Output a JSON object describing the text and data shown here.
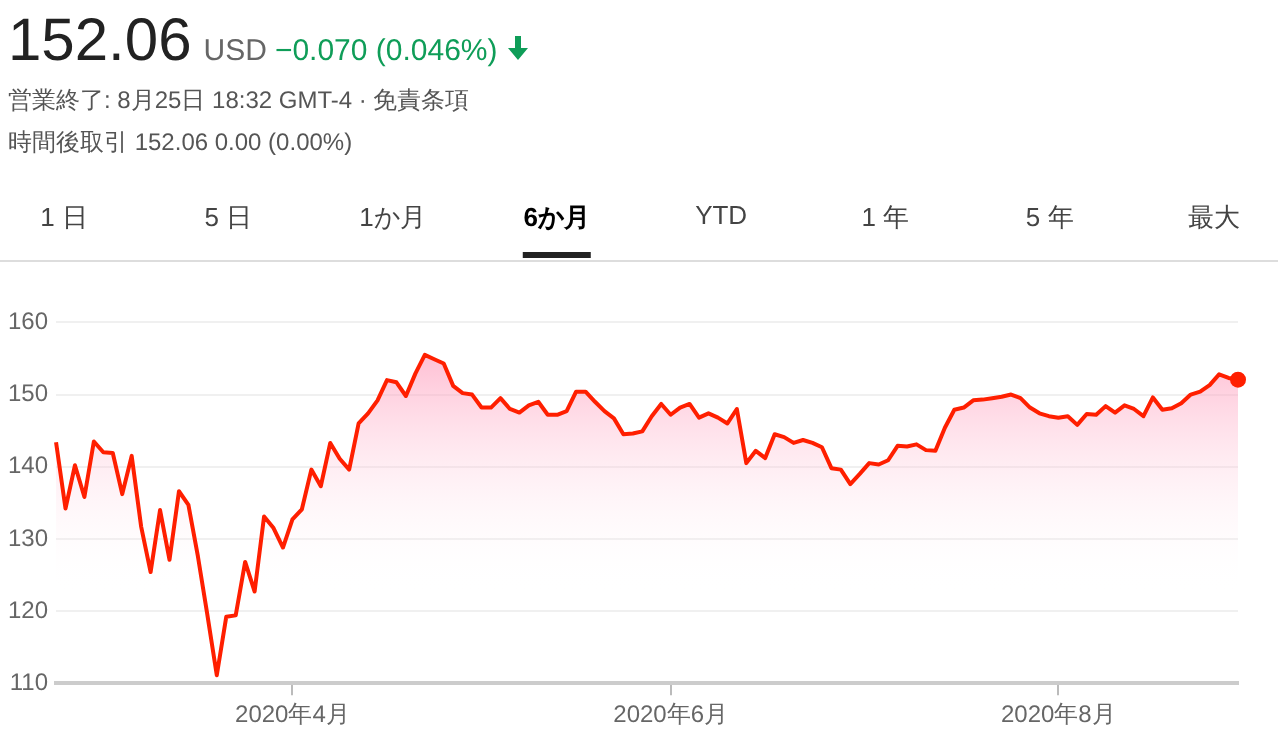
{
  "chart_data": {
    "type": "area",
    "title": "152.06",
    "annotations": [
      "USD",
      "−0.070 (0.046%)",
      "営業終了: 8月25日 18:32 GMT-4 · 免責条項",
      "時間後取引 152.06 0.00 (0.00%)",
      "1 日",
      "5 日",
      "1か月",
      "6か月",
      "YTD",
      "1 年",
      "5 年",
      "最大"
    ],
    "categories": [
      null,
      null,
      null,
      null,
      null,
      null,
      null,
      null,
      null,
      null,
      null,
      null,
      null,
      null,
      null,
      null,
      null,
      null,
      null,
      null,
      null,
      null,
      null,
      null,
      null,
      "2020年4月",
      null,
      null,
      null,
      null,
      null,
      null,
      null,
      null,
      null,
      null,
      null,
      null,
      null,
      null,
      null,
      null,
      null,
      null,
      null,
      null,
      null,
      null,
      null,
      null,
      null,
      null,
      null,
      null,
      null,
      null,
      null,
      null,
      null,
      null,
      null,
      null,
      null,
      null,
      null,
      "2020年6月",
      null,
      null,
      null,
      null,
      null,
      null,
      null,
      null,
      null,
      null,
      null,
      null,
      null,
      null,
      null,
      null,
      null,
      null,
      null,
      null,
      null,
      null,
      null,
      null,
      null,
      null,
      null,
      null,
      null,
      null,
      null,
      null,
      null,
      null,
      null,
      null,
      null,
      null,
      null,
      null,
      "2020年8月",
      null,
      null,
      null,
      null,
      null,
      null,
      null,
      null,
      null,
      null,
      null,
      null,
      null,
      null,
      null,
      null,
      null,
      null,
      null
    ],
    "values": [
      143.4,
      134.2,
      140.2,
      135.8,
      143.5,
      142.0,
      141.9,
      136.2,
      141.5,
      131.7,
      125.4,
      134.0,
      127.1,
      136.6,
      134.7,
      127.6,
      119.5,
      111.1,
      119.2,
      119.4,
      126.8,
      122.7,
      133.1,
      131.5,
      128.8,
      132.7,
      134.1,
      139.6,
      137.3,
      143.3,
      141.1,
      139.6,
      146.0,
      147.4,
      149.2,
      152.0,
      151.7,
      149.8,
      152.9,
      155.5,
      154.9,
      154.3,
      151.2,
      150.2,
      150.0,
      148.2,
      148.2,
      149.5,
      148.0,
      147.5,
      148.5,
      149.0,
      147.2,
      147.2,
      147.7,
      150.4,
      150.4,
      149.0,
      147.7,
      146.7,
      144.5,
      144.6,
      144.9,
      147.0,
      148.7,
      147.2,
      148.2,
      148.7,
      146.8,
      147.4,
      146.8,
      146.0,
      148.0,
      140.5,
      142.2,
      141.2,
      144.5,
      144.1,
      143.3,
      143.7,
      143.3,
      142.7,
      139.8,
      139.6,
      137.6,
      139.0,
      140.5,
      140.3,
      140.9,
      142.9,
      142.8,
      143.1,
      142.3,
      142.2,
      145.4,
      147.9,
      148.2,
      149.2,
      149.3,
      149.5,
      149.7,
      150.0,
      149.5,
      148.2,
      147.4,
      147.0,
      146.8,
      147.0,
      145.8,
      147.3,
      147.2,
      148.4,
      147.5,
      148.5,
      148.0,
      147.0,
      149.6,
      147.9,
      148.1,
      148.8,
      150.0,
      150.4,
      151.3,
      152.8,
      152.3,
      152.06
    ],
    "color": "#ff1f00",
    "ylim": [
      110,
      160
    ],
    "yticks": [
      110,
      120,
      130,
      140,
      150,
      160
    ],
    "grid": "y"
  }
}
